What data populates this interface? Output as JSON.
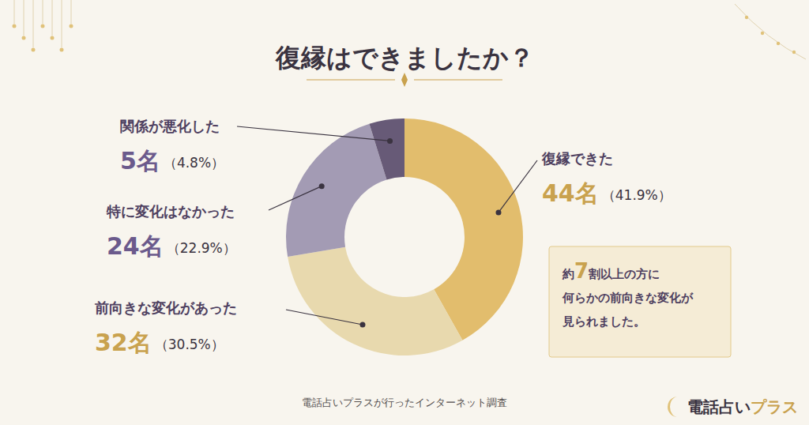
{
  "chart_data": {
    "type": "pie",
    "title": "復縁はできましたか？",
    "categories": [
      "復縁できた",
      "前向きな変化があった",
      "特に変化はなかった",
      "関係が悪化した"
    ],
    "values": [
      41.9,
      30.5,
      22.9,
      4.8
    ],
    "value_labels": [
      "（41.9%）",
      "（30.5%）",
      "（22.9%）",
      "（4.8%）"
    ],
    "counts": [
      44,
      32,
      24,
      5
    ],
    "count_labels": [
      "44名",
      "32名",
      "24名",
      "5名"
    ],
    "colors": [
      "#e2bd6d",
      "#e8d9ae",
      "#a39bb4",
      "#675a77"
    ],
    "data_labels": true,
    "annotation": [
      "約7割以上の方に",
      "何らかの前向きな変化が",
      "見られました。"
    ],
    "source": "電話占いプラスが行ったインターネット調査",
    "logo": [
      "電話占い",
      "プラス"
    ]
  }
}
